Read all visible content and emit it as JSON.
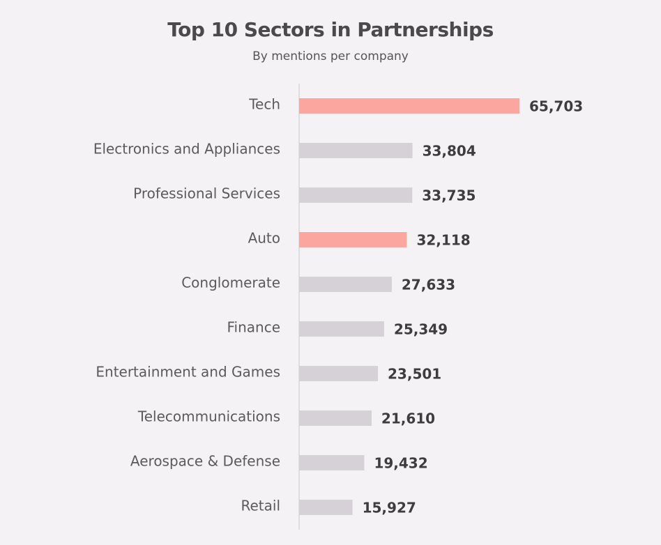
{
  "chart_data": {
    "type": "bar",
    "orientation": "horizontal",
    "title": "Top 10 Sectors in Partnerships",
    "subtitle": "By mentions per company",
    "categories": [
      "Tech",
      "Electronics and Appliances",
      "Professional Services",
      "Auto",
      "Conglomerate",
      "Finance",
      "Entertainment and Games",
      "Telecommunications",
      "Aerospace & Defense",
      "Retail"
    ],
    "values": [
      65703,
      33804,
      33735,
      32118,
      27633,
      25349,
      23501,
      21610,
      19432,
      15927
    ],
    "value_labels": [
      "65,703",
      "33,804",
      "33,735",
      "32,118",
      "27,633",
      "25,349",
      "23,501",
      "21,610",
      "19,432",
      "15,927"
    ],
    "highlighted": [
      true,
      false,
      false,
      true,
      false,
      false,
      false,
      false,
      false,
      false
    ],
    "colors": {
      "highlight": "#fba79f",
      "default": "#d5d1d6",
      "axis": "#d9d6da",
      "background": "#f4f2f5"
    },
    "grid": false,
    "legend": "none",
    "xlim": [
      0,
      65703
    ]
  }
}
